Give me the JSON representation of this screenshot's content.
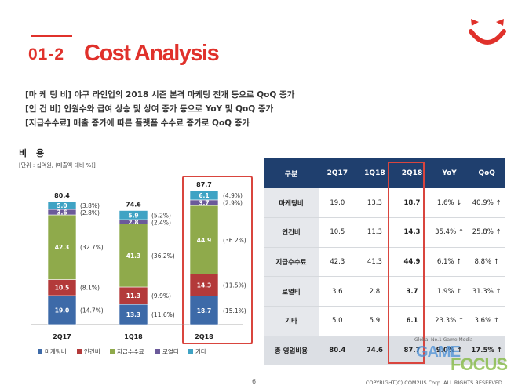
{
  "header": {
    "section_no": "01-2",
    "title": "Cost Analysis"
  },
  "bullets": [
    "[마 케 팅 비] 야구 라인업의 2018 시즌 본격 마케팅 전개 등으로 QoQ 증가",
    "[인    건   비] 인원수와 급여 상승 및 상여 증가 등으로 YoY 및 QoQ 증가",
    "[지급수수료] 매출 증가에 따른 플랫폼 수수료 증가로 QoQ 증가"
  ],
  "chart_data": {
    "type": "bar",
    "stacked": true,
    "title": "비 용",
    "unit": "[단위 : 십억원, (매출액 대비 %)]",
    "categories": [
      "2Q17",
      "1Q18",
      "2Q18"
    ],
    "totals": [
      "80.4",
      "74.6",
      "87.7"
    ],
    "highlighted_category": "2Q18",
    "legend_position": "bottom",
    "series": [
      {
        "name": "마케팅비",
        "color": "#3d6aa8",
        "values": [
          19.0,
          13.3,
          18.7
        ],
        "labels": [
          "19.0",
          "13.3",
          "18.7"
        ],
        "pct": [
          "(14.7%)",
          "(11.6%)",
          "(15.1%)"
        ]
      },
      {
        "name": "인건비",
        "color": "#b33a3a",
        "values": [
          10.5,
          11.3,
          14.3
        ],
        "labels": [
          "10.5",
          "11.3",
          "14.3"
        ],
        "pct": [
          "(8.1%)",
          "(9.9%)",
          "(11.5%)"
        ]
      },
      {
        "name": "지급수수료",
        "color": "#8faa4b",
        "values": [
          42.3,
          41.3,
          44.9
        ],
        "labels": [
          "42.3",
          "41.3",
          "44.9"
        ],
        "pct": [
          "(32.7%)",
          "(36.2%)",
          "(36.2%)"
        ]
      },
      {
        "name": "로열티",
        "color": "#6b5a9a",
        "values": [
          3.6,
          2.8,
          3.7
        ],
        "labels": [
          "3.6",
          "2.8",
          "3.7"
        ],
        "pct": [
          "(2.8%)",
          "(2.4%)",
          "(2.9%)"
        ]
      },
      {
        "name": "기타",
        "color": "#3fa3c4",
        "values": [
          5.0,
          5.9,
          6.1
        ],
        "labels": [
          "5.0",
          "5.9",
          "6.1"
        ],
        "pct": [
          "(3.8%)",
          "(5.2%)",
          "(4.9%)"
        ]
      }
    ]
  },
  "table": {
    "headers": [
      "구분",
      "2Q17",
      "1Q18",
      "2Q18",
      "YoY",
      "QoQ"
    ],
    "rows": [
      [
        "마케팅비",
        "19.0",
        "13.3",
        "18.7",
        "1.6% ↓",
        "40.9% ↑"
      ],
      [
        "인건비",
        "10.5",
        "11.3",
        "14.3",
        "35.4% ↑",
        "25.8% ↑"
      ],
      [
        "지급수수료",
        "42.3",
        "41.3",
        "44.9",
        "6.1% ↑",
        "8.8% ↑"
      ],
      [
        "로열티",
        "3.6",
        "2.8",
        "3.7",
        "1.9% ↑",
        "31.3% ↑"
      ],
      [
        "기타",
        "5.0",
        "5.9",
        "6.1",
        "23.3% ↑",
        "3.6% ↑"
      ],
      [
        "총 영업비용",
        "80.4",
        "74.6",
        "87.7",
        "9.0% ↑",
        "17.5% ↑"
      ]
    ]
  },
  "footer": {
    "page_number": "6",
    "copyright": "COPYRIGHT(C) COM2US Corp. ALL RIGHTS RESERVED."
  },
  "watermark": {
    "top": "Global No.1 Game Media",
    "game": "GAME",
    "focus": "FOCUS"
  },
  "colors": {
    "accent": "#e0312b",
    "table_header": "#1f3f6e"
  }
}
